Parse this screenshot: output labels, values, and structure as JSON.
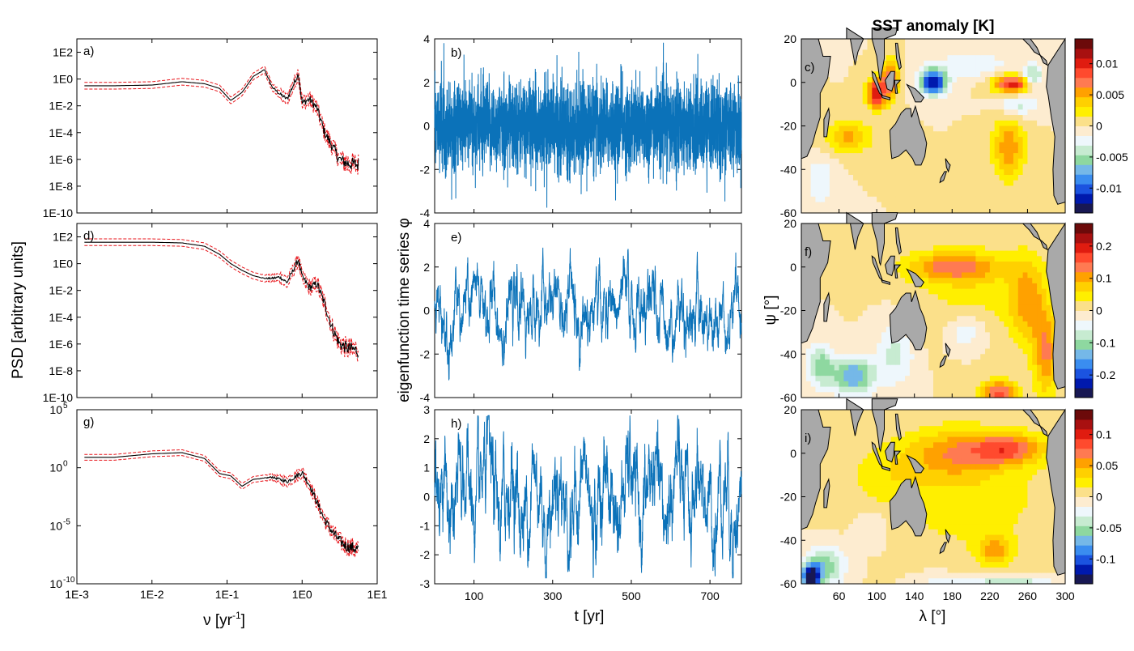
{
  "figure": {
    "map_title": "SST anomaly [K]",
    "left_ylabel": "PSD [arbitrary units]",
    "left_xlabel_prefix": "ν [yr",
    "left_xlabel_sup": "-1",
    "left_xlabel_suffix": "]",
    "mid_ylabel": "eigenfunction time series φ",
    "mid_xlabel": "t [yr]",
    "map_ylabel": "ψ [°]",
    "map_xlabel": "λ [°]",
    "colors": {
      "psd_line": "#000000",
      "psd_band": "#e8151b",
      "series_line": "#0b72b9",
      "land": "#a9a9a9"
    }
  },
  "chart_data": [
    {
      "id": "a",
      "panel_label": "a)",
      "type": "line",
      "scale": "log",
      "xlabel": "ν [yr-1]",
      "ylabel": "PSD [arbitrary units]",
      "xlim": [
        0.001,
        10
      ],
      "ylim": [
        1e-10,
        1000
      ],
      "x_ticks": [
        "1E-3",
        "1E-2",
        "1E-1",
        "1E0",
        "1E1"
      ],
      "y_ticks": [
        "1E2",
        "1E0",
        "1E-2",
        "1E-4",
        "1E-6",
        "1E-8",
        "1E-10"
      ],
      "y_tick_exp": [
        2,
        0,
        -2,
        -4,
        -6,
        -8,
        -10
      ],
      "spectrum": {
        "freq_log10": [
          -2.9,
          -2.5,
          -2.0,
          -1.6,
          -1.3,
          -1.1,
          -0.95,
          -0.8,
          -0.65,
          -0.5,
          -0.4,
          -0.3,
          -0.2,
          -0.05,
          0.0,
          0.1,
          0.2,
          0.3,
          0.4,
          0.5,
          0.6,
          0.75
        ],
        "psd_log10": [
          -0.5,
          -0.5,
          -0.45,
          -0.2,
          -0.35,
          -0.7,
          -1.6,
          -1.0,
          0.2,
          0.7,
          -0.6,
          -1.1,
          -1.5,
          0.4,
          -1.8,
          -1.5,
          -2.2,
          -4.0,
          -5.0,
          -6.0,
          -6.3,
          -6.4
        ]
      }
    },
    {
      "id": "d",
      "panel_label": "d)",
      "type": "line",
      "scale": "log",
      "xlim": [
        0.001,
        10
      ],
      "ylim": [
        1e-10,
        1000
      ],
      "x_ticks": [
        "1E-3",
        "1E-2",
        "1E-1",
        "1E0",
        "1E1"
      ],
      "y_ticks": [
        "1E2",
        "1E0",
        "1E-2",
        "1E-4",
        "1E-6",
        "1E-8",
        "1E-10"
      ],
      "y_tick_exp": [
        2,
        0,
        -2,
        -4,
        -6,
        -8,
        -10
      ],
      "spectrum": {
        "freq_log10": [
          -2.9,
          -2.5,
          -2.0,
          -1.6,
          -1.3,
          -1.1,
          -0.95,
          -0.8,
          -0.65,
          -0.5,
          -0.4,
          -0.3,
          -0.2,
          -0.05,
          0.0,
          0.1,
          0.2,
          0.3,
          0.4,
          0.5,
          0.6,
          0.75
        ],
        "psd_log10": [
          1.6,
          1.6,
          1.6,
          1.55,
          1.3,
          0.7,
          0.0,
          -0.5,
          -0.9,
          -1.1,
          -1.1,
          -1.0,
          -1.4,
          0.3,
          -1.0,
          -1.8,
          -1.5,
          -3.0,
          -4.8,
          -6.0,
          -6.3,
          -6.5
        ]
      }
    },
    {
      "id": "g",
      "panel_label": "g)",
      "type": "line",
      "scale": "log",
      "xlim": [
        0.001,
        10
      ],
      "ylim": [
        1e-10,
        100000
      ],
      "x_ticks": [
        "1E-3",
        "1E-2",
        "1E-1",
        "1E0",
        "1E1"
      ],
      "y_ticks": [
        "10",
        "10",
        "10",
        "10"
      ],
      "y_tick_sup": [
        "5",
        "0",
        "-5",
        "-10"
      ],
      "y_tick_exp": [
        5,
        0,
        -5,
        -10
      ],
      "spectrum": {
        "freq_log10": [
          -2.9,
          -2.5,
          -2.0,
          -1.6,
          -1.3,
          -1.1,
          -0.95,
          -0.8,
          -0.65,
          -0.5,
          -0.4,
          -0.3,
          -0.2,
          -0.05,
          0.0,
          0.1,
          0.2,
          0.3,
          0.4,
          0.5,
          0.6,
          0.75
        ],
        "psd_log10": [
          0.9,
          0.9,
          1.2,
          1.3,
          0.8,
          -0.5,
          -0.7,
          -1.6,
          -1.0,
          -0.9,
          -0.8,
          -1.0,
          -1.2,
          -0.6,
          -0.4,
          -1.5,
          -3.0,
          -4.5,
          -5.5,
          -6.3,
          -6.8,
          -7.0
        ]
      }
    },
    {
      "id": "b",
      "panel_label": "b)",
      "type": "line",
      "xlim": [
        0,
        780
      ],
      "ylim": [
        -4,
        4
      ],
      "y_ticks": [
        "4",
        "2",
        "0",
        "-2",
        "-4"
      ],
      "y_tick_vals": [
        4,
        2,
        0,
        -2,
        -4
      ],
      "x_ticks": [
        "100",
        "300",
        "500",
        "700"
      ],
      "x_tick_vals": [
        100,
        300,
        500,
        700
      ],
      "series": {
        "n": 3500,
        "sigma": 1.0,
        "ar": 0.0,
        "clip": 4
      }
    },
    {
      "id": "e",
      "panel_label": "e)",
      "type": "line",
      "xlim": [
        0,
        780
      ],
      "ylim": [
        -4,
        4
      ],
      "y_ticks": [
        "4",
        "2",
        "0",
        "-2",
        "-4"
      ],
      "y_tick_vals": [
        4,
        2,
        0,
        -2,
        -4
      ],
      "x_ticks": [
        "100",
        "300",
        "500",
        "700"
      ],
      "x_tick_vals": [
        100,
        300,
        500,
        700
      ],
      "series": {
        "n": 2400,
        "sigma": 1.0,
        "ar": 0.93,
        "clip": 3.9
      }
    },
    {
      "id": "h",
      "panel_label": "h)",
      "type": "line",
      "xlabel": "t [yr]",
      "xlim": [
        0,
        780
      ],
      "ylim": [
        -3,
        3
      ],
      "y_ticks": [
        "3",
        "2",
        "1",
        "0",
        "-1",
        "-2",
        "-3"
      ],
      "y_tick_vals": [
        3,
        2,
        1,
        0,
        -1,
        -2,
        -3
      ],
      "x_ticks": [
        "100",
        "300",
        "500",
        "700"
      ],
      "x_tick_vals": [
        100,
        300,
        500,
        700
      ],
      "series": {
        "n": 2400,
        "sigma": 0.95,
        "ar": 0.9,
        "osc_period": 60,
        "clip": 2.8
      }
    },
    {
      "id": "c",
      "panel_label": "c)",
      "type": "heatmap",
      "xlim": [
        20,
        300
      ],
      "ylim": [
        -60,
        20
      ],
      "y_ticks": [
        "20",
        "0",
        "-20",
        "-40",
        "-60"
      ],
      "y_tick_vals": [
        20,
        0,
        -20,
        -40,
        -60
      ],
      "x_ticks": [
        "60",
        "100",
        "140",
        "180",
        "220",
        "260",
        "300"
      ],
      "x_tick_vals": [
        60,
        100,
        140,
        180,
        220,
        260,
        300
      ],
      "colorbar": {
        "ticks": [
          "0.01",
          "0.005",
          "0",
          "-0.005",
          "-0.01"
        ],
        "tick_vals": [
          0.01,
          0.005,
          0,
          -0.005,
          -0.01
        ],
        "range": [
          -0.014,
          0.014
        ]
      },
      "anomalies": [
        {
          "lon": 160,
          "lat": 0,
          "val": -0.013,
          "sx": 10,
          "sy": 4
        },
        {
          "lon": 245,
          "lat": -1,
          "val": 0.011,
          "sx": 14,
          "sy": 3
        },
        {
          "lon": 265,
          "lat": 2,
          "val": -0.006,
          "sx": 8,
          "sy": 4
        },
        {
          "lon": 100,
          "lat": -5,
          "val": 0.011,
          "sx": 7,
          "sy": 5
        },
        {
          "lon": 115,
          "lat": 2,
          "val": 0.008,
          "sx": 6,
          "sy": 6
        },
        {
          "lon": 240,
          "lat": -30,
          "val": 0.006,
          "sx": 12,
          "sy": 10
        },
        {
          "lon": 70,
          "lat": -25,
          "val": 0.005,
          "sx": 18,
          "sy": 5
        },
        {
          "lon": 250,
          "lat": -10,
          "val": -0.004,
          "sx": 15,
          "sy": 4
        },
        {
          "lon": 200,
          "lat": 8,
          "val": -0.003,
          "sx": 30,
          "sy": 4
        },
        {
          "lon": 40,
          "lat": -45,
          "val": -0.003,
          "sx": 10,
          "sy": 8
        }
      ]
    },
    {
      "id": "f",
      "panel_label": "f)",
      "type": "heatmap",
      "xlim": [
        20,
        300
      ],
      "ylim": [
        -60,
        20
      ],
      "y_ticks": [
        "20",
        "0",
        "-20",
        "-40",
        "-60"
      ],
      "y_tick_vals": [
        20,
        0,
        -20,
        -40,
        -60
      ],
      "x_ticks": [
        "60",
        "100",
        "140",
        "180",
        "220",
        "260",
        "300"
      ],
      "x_tick_vals": [
        60,
        100,
        140,
        180,
        220,
        260,
        300
      ],
      "colorbar": {
        "ticks": [
          "0.2",
          "0.1",
          "0",
          "-0.1",
          "-0.2"
        ],
        "tick_vals": [
          0.2,
          0.1,
          0,
          -0.1,
          -0.2
        ],
        "range": [
          -0.27,
          0.27
        ]
      },
      "anomalies": [
        {
          "lon": 180,
          "lat": 0,
          "val": 0.12,
          "sx": 35,
          "sy": 5
        },
        {
          "lon": 260,
          "lat": -15,
          "val": 0.1,
          "sx": 14,
          "sy": 14
        },
        {
          "lon": 280,
          "lat": -40,
          "val": 0.12,
          "sx": 10,
          "sy": 14
        },
        {
          "lon": 230,
          "lat": -58,
          "val": 0.16,
          "sx": 14,
          "sy": 4
        },
        {
          "lon": 200,
          "lat": -12,
          "val": 0.04,
          "sx": 40,
          "sy": 15
        },
        {
          "lon": 75,
          "lat": -50,
          "val": -0.15,
          "sx": 16,
          "sy": 6
        },
        {
          "lon": 40,
          "lat": -45,
          "val": -0.1,
          "sx": 10,
          "sy": 7
        },
        {
          "lon": 120,
          "lat": -40,
          "val": -0.07,
          "sx": 14,
          "sy": 10
        },
        {
          "lon": 195,
          "lat": -30,
          "val": -0.06,
          "sx": 15,
          "sy": 6
        }
      ]
    },
    {
      "id": "i",
      "panel_label": "i)",
      "type": "heatmap",
      "xlabel": "λ [°]",
      "xlim": [
        20,
        300
      ],
      "ylim": [
        -60,
        20
      ],
      "y_ticks": [
        "20",
        "0",
        "-20",
        "-40",
        "-60"
      ],
      "y_tick_vals": [
        20,
        0,
        -20,
        -40,
        -60
      ],
      "x_ticks": [
        "60",
        "100",
        "140",
        "180",
        "220",
        "260",
        "300"
      ],
      "x_tick_vals": [
        60,
        100,
        140,
        180,
        220,
        260,
        300
      ],
      "colorbar": {
        "ticks": [
          "0.1",
          "0.05",
          "0",
          "-0.05",
          "-0.1"
        ],
        "tick_vals": [
          0.1,
          0.05,
          0,
          -0.05,
          -0.1
        ],
        "range": [
          -0.14,
          0.14
        ]
      },
      "anomalies": [
        {
          "lon": 240,
          "lat": 2,
          "val": 0.07,
          "sx": 28,
          "sy": 5
        },
        {
          "lon": 180,
          "lat": 0,
          "val": 0.045,
          "sx": 35,
          "sy": 8
        },
        {
          "lon": 200,
          "lat": -20,
          "val": 0.025,
          "sx": 60,
          "sy": 20
        },
        {
          "lon": 110,
          "lat": -10,
          "val": 0.02,
          "sx": 30,
          "sy": 10
        },
        {
          "lon": 225,
          "lat": -45,
          "val": 0.05,
          "sx": 12,
          "sy": 5
        },
        {
          "lon": 30,
          "lat": -57,
          "val": -0.13,
          "sx": 7,
          "sy": 4
        },
        {
          "lon": 45,
          "lat": -52,
          "val": -0.06,
          "sx": 15,
          "sy": 6
        },
        {
          "lon": 240,
          "lat": -59,
          "val": -0.05,
          "sx": 30,
          "sy": 2
        },
        {
          "lon": 95,
          "lat": -35,
          "val": -0.02,
          "sx": 12,
          "sy": 6
        },
        {
          "lon": 165,
          "lat": -60,
          "val": -0.02,
          "sx": 20,
          "sy": 4
        }
      ]
    }
  ]
}
